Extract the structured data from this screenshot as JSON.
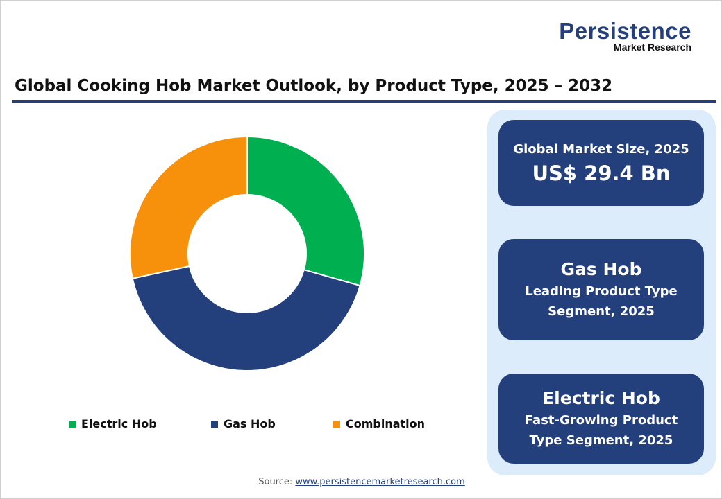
{
  "logo": {
    "line1": "Persistence",
    "line2": "Market Research"
  },
  "title": "Global Cooking Hob Market Outlook, by Product Type, 2025 – 2032",
  "chart_data": {
    "type": "pie",
    "donut": true,
    "title": "",
    "categories": [
      "Electric Hob",
      "Gas Hob",
      "Combination"
    ],
    "values": [
      29.4,
      42.2,
      28.4
    ],
    "unit": "%",
    "colors": [
      "#00b050",
      "#233f7c",
      "#f7900a"
    ],
    "legend": "bottom"
  },
  "panel": {
    "card1": {
      "label": "Global Market Size, 2025",
      "value": "US$ 29.4 Bn"
    },
    "card2": {
      "title": "Gas Hob",
      "line1": "Leading Product Type",
      "line2": "Segment, 2025"
    },
    "card3": {
      "title": "Electric Hob",
      "line1": "Fast-Growing Product",
      "line2": "Type Segment, 2025"
    }
  },
  "source": {
    "label": "Source:",
    "link": "www.persistencemarketresearch.com"
  }
}
